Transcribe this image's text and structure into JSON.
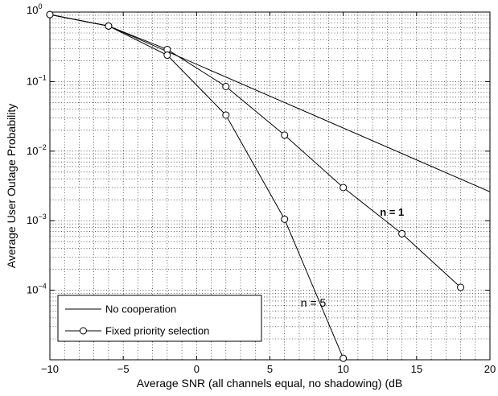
{
  "chart_data": {
    "type": "line",
    "xlabel": "Average SNR (all channels equal, no shadowing) (dB",
    "ylabel": "Average User Outage Probability",
    "xlim": [
      -10,
      20
    ],
    "ylim": [
      1e-05,
      1
    ],
    "yscale": "log",
    "grid": true,
    "legend_position": "bottom-left",
    "x_ticks": [
      "−10",
      "−5",
      "0",
      "5",
      "10",
      "15",
      "20"
    ],
    "y_ticks": [
      {
        "base": "10",
        "exp": "0"
      },
      {
        "base": "10",
        "exp": "−1"
      },
      {
        "base": "10",
        "exp": "−2"
      },
      {
        "base": "10",
        "exp": "−3"
      },
      {
        "base": "10",
        "exp": "−4"
      }
    ],
    "series": [
      {
        "name": "No cooperation",
        "marker": "none",
        "x": [
          -10,
          -6,
          20
        ],
        "y": [
          0.92,
          0.63,
          0.0026
        ]
      },
      {
        "name": "Fixed priority selection",
        "marker": "circle",
        "x": [
          -10,
          -6,
          -2,
          2,
          6,
          10,
          14,
          18
        ],
        "y": [
          0.92,
          0.63,
          0.29,
          0.085,
          0.017,
          0.003,
          0.00065,
          0.00011
        ]
      },
      {
        "marker": "circle",
        "x": [
          -10,
          -6,
          -2,
          2,
          6,
          10
        ],
        "y": [
          0.92,
          0.63,
          0.24,
          0.033,
          0.00105,
          1.05e-05
        ]
      }
    ],
    "annotations": [
      {
        "text": "n = 1",
        "x": 12.5,
        "y": 0.00118,
        "bold": true
      },
      {
        "text": "n = 5",
        "x": 7.1,
        "y": 5.8e-05,
        "bold": false
      }
    ]
  }
}
